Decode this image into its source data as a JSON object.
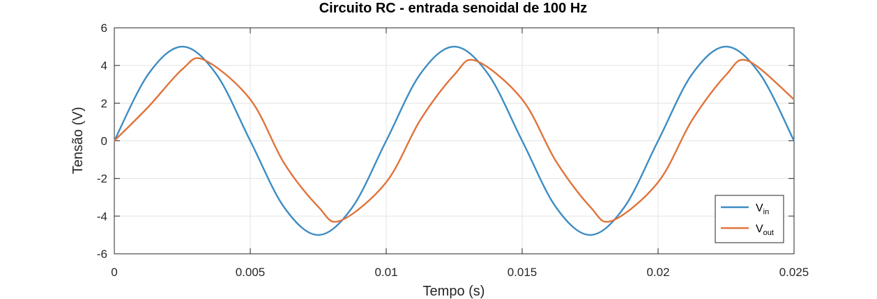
{
  "chart_data": {
    "type": "line",
    "title": "Circuito RC - entrada senoidal de 100 Hz",
    "xlabel": "Tempo (s)",
    "ylabel": "Tensão (V)",
    "xlim": [
      0,
      0.025
    ],
    "ylim": [
      -6,
      6
    ],
    "xticks": [
      0,
      0.005,
      0.01,
      0.015,
      0.02,
      0.025
    ],
    "xtick_labels": [
      "0",
      "0.005",
      "0.01",
      "0.015",
      "0.02",
      "0.025"
    ],
    "yticks": [
      -6,
      -4,
      -2,
      0,
      2,
      4,
      6
    ],
    "ytick_labels": [
      "-6",
      "-4",
      "-2",
      "0",
      "2",
      "4",
      "6"
    ],
    "grid": true,
    "legend_position": "bottom-right",
    "series": [
      {
        "name": "V",
        "name_sub": "in",
        "color": "#3d8cc4",
        "x": [
          0,
          0.00125,
          0.0025,
          0.00375,
          0.005,
          0.00625,
          0.0075,
          0.00875,
          0.01,
          0.01125,
          0.0125,
          0.01375,
          0.015,
          0.01625,
          0.0175,
          0.01875,
          0.02,
          0.02125,
          0.0225,
          0.02375,
          0.025
        ],
        "y": [
          0,
          3.54,
          5,
          3.54,
          0,
          -3.54,
          -5,
          -3.54,
          0,
          3.54,
          5,
          3.54,
          0,
          -3.54,
          -5,
          -3.54,
          0,
          3.54,
          5,
          3.54,
          0
        ]
      },
      {
        "name": "V",
        "name_sub": "out",
        "color": "#e0733a",
        "x": [
          0,
          0.00125,
          0.0025,
          0.0033,
          0.005,
          0.00625,
          0.0075,
          0.0083,
          0.01,
          0.01125,
          0.0125,
          0.0133,
          0.015,
          0.01625,
          0.0175,
          0.0183,
          0.02,
          0.02125,
          0.0225,
          0.0233,
          0.025
        ],
        "y": [
          0,
          1.8,
          3.8,
          4.3,
          2.2,
          -1.2,
          -3.5,
          -4.25,
          -2.2,
          1.1,
          3.5,
          4.25,
          2.2,
          -1.1,
          -3.5,
          -4.25,
          -2.2,
          1.1,
          3.5,
          4.25,
          2.2
        ]
      }
    ]
  }
}
